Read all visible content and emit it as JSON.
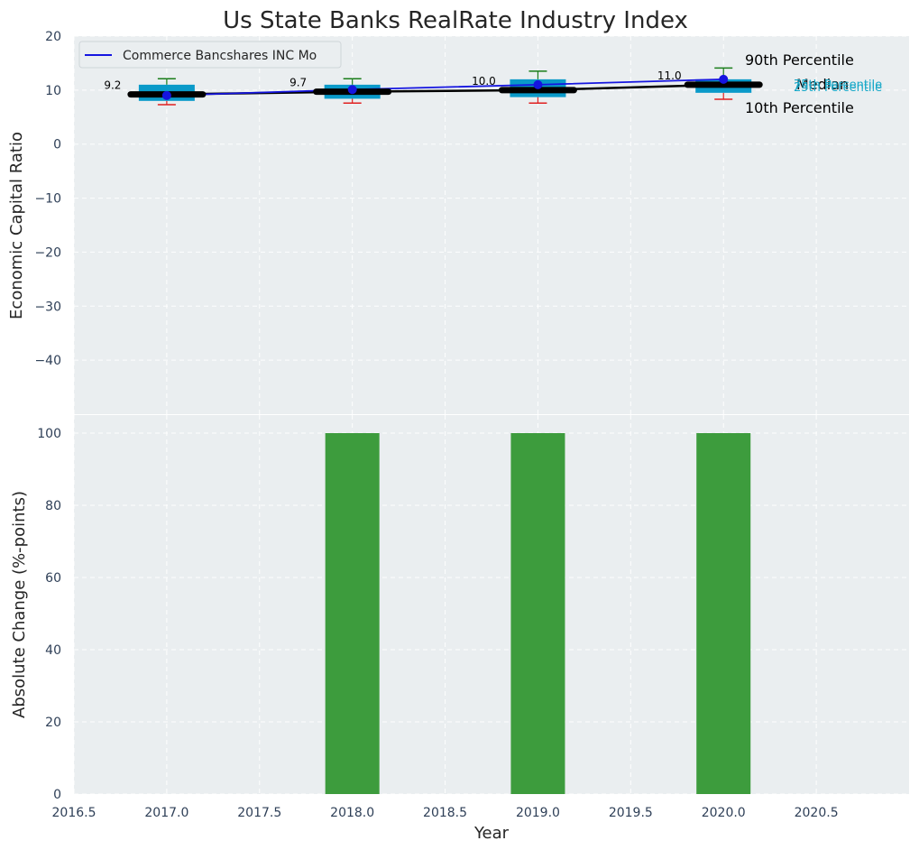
{
  "chart_data": [
    {
      "type": "box",
      "title": "Us State Banks RealRate Industry Index",
      "xlabel": "",
      "ylabel": "Economic Capital Ratio",
      "ylim": [
        -50,
        20
      ],
      "xlim": [
        2016.5,
        2021.0
      ],
      "yticks": [
        20,
        10,
        0,
        -10,
        -20,
        -30,
        -40
      ],
      "grid": true,
      "legend": {
        "position": "top-left",
        "entries": [
          "Commerce Bancshares INC Mo"
        ]
      },
      "colors": {
        "box": "#0a9ac9",
        "whisker_high": "#1a7d1a",
        "whisker_low": "#e02020",
        "company": "#1515e0",
        "median": "#000000",
        "background": "#eaeef0"
      },
      "boxes": [
        {
          "x": 2017,
          "p10": 7.3,
          "q1": 8.0,
          "median": 9.2,
          "q3": 11.0,
          "p90": 12.1
        },
        {
          "x": 2018,
          "p10": 7.6,
          "q1": 8.4,
          "median": 9.7,
          "q3": 11.0,
          "p90": 12.1
        },
        {
          "x": 2019,
          "p10": 7.6,
          "q1": 8.7,
          "median": 10.0,
          "q3": 12.0,
          "p90": 13.5
        },
        {
          "x": 2020,
          "p10": 8.3,
          "q1": 9.5,
          "median": 11.0,
          "q3": 12.0,
          "p90": 14.1
        }
      ],
      "median_labels": [
        "9.2",
        "9.7",
        "10.0",
        "11.0"
      ],
      "company_series": {
        "name": "Commerce Bancshares INC Mo",
        "x": [
          2017,
          2018,
          2019,
          2020
        ],
        "values": [
          9.0,
          10.1,
          11.0,
          12.0
        ]
      },
      "annotations": {
        "p90": "90th Percentile",
        "median": "Median",
        "p10": "10th Percentile",
        "q3": "75th Percentile",
        "q1": "25th Percentile"
      }
    },
    {
      "type": "bar",
      "xlabel": "Year",
      "ylabel": "Absolute Change (%-points)",
      "ylim": [
        0,
        105
      ],
      "xlim": [
        2016.5,
        2021.0
      ],
      "yticks": [
        0,
        20,
        40,
        60,
        80,
        100
      ],
      "xticks": [
        2016.5,
        2017.0,
        2017.5,
        2018.0,
        2018.5,
        2019.0,
        2019.5,
        2020.0,
        2020.5
      ],
      "xtick_labels": [
        "2016.5",
        "2017.0",
        "2017.5",
        "2018.0",
        "2018.5",
        "2019.0",
        "2019.5",
        "2020.0",
        "2020.5"
      ],
      "grid": true,
      "bar_color": "#3d9c3d",
      "x": [
        2017,
        2018,
        2019,
        2020
      ],
      "values": [
        0,
        100,
        100,
        100
      ]
    }
  ]
}
